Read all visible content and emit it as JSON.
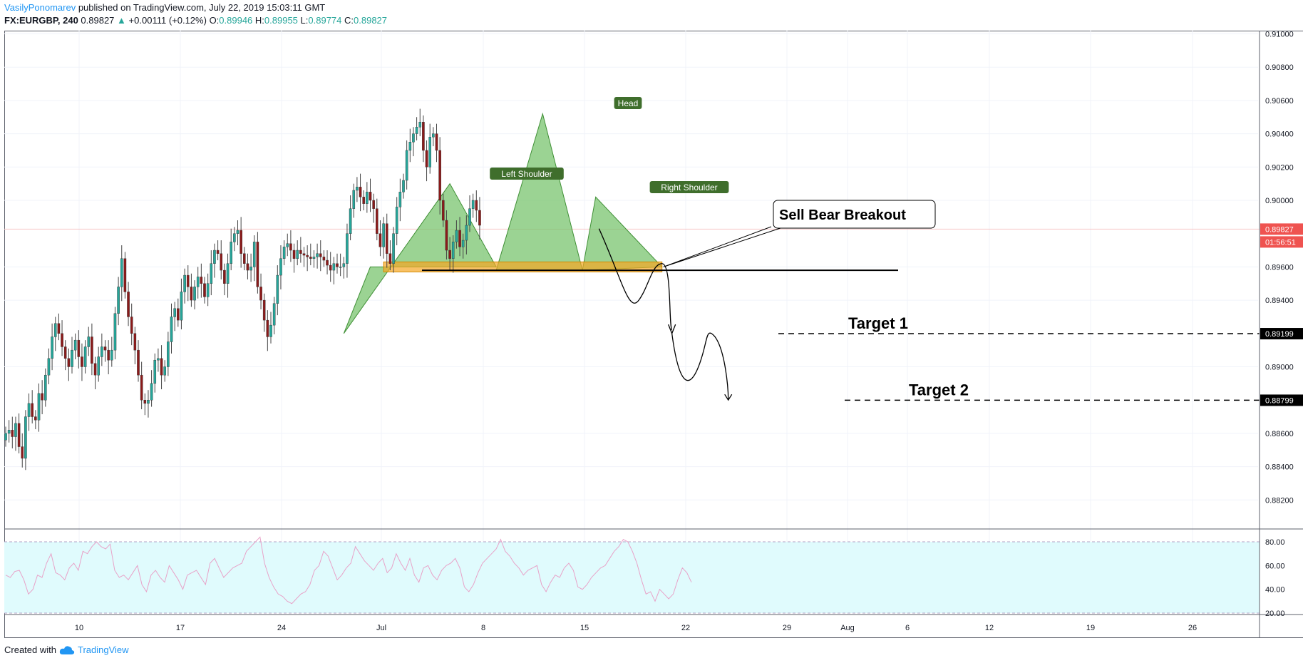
{
  "header": {
    "author": "VasilyPonomarev",
    "published_text": "published on TradingView.com, July 22, 2019 15:03:11 GMT",
    "symbol": "FX:EURGBP, 240",
    "last": "0.89827",
    "change_arrow": "▲",
    "change": "+0.00111 (+0.12%)",
    "o_label": "O:",
    "o_value": "0.89946",
    "h_label": "H:",
    "h_value": "0.89955",
    "l_label": "L:",
    "l_value": "0.89774",
    "c_label": "C:",
    "c_value": "0.89827"
  },
  "footer": {
    "created_with": "Created with",
    "brand": "TradingView",
    "brand_icon": "tradingview-cloud-icon"
  },
  "colors": {
    "bull": "#26a69a",
    "bear": "#8b1a1a",
    "pattern_fill": "#7ac46f",
    "zone": "#f5a623",
    "rsi_band": "#e0fbfd",
    "rsi_line": "#e8a2c8",
    "price_tag": "#ef5350",
    "label_bg": "#3f6e2c"
  },
  "chart_data": [
    {
      "type": "candlestick",
      "title": "",
      "ylim": [
        0.88,
        0.91
      ],
      "y_ticks": [
        "0.91000",
        "0.90800",
        "0.90600",
        "0.90400",
        "0.90200",
        "0.90000",
        "0.89600",
        "0.89400",
        "0.89000",
        "0.88600",
        "0.88400",
        "0.88200"
      ],
      "x_ticks": [
        "10",
        "17",
        "24",
        "Jul",
        "8",
        "15",
        "22",
        "29",
        "Aug",
        "6",
        "12",
        "19",
        "26"
      ],
      "price_tags": [
        {
          "label": "0.89827",
          "value": 0.89827,
          "kind": "last"
        },
        {
          "label": "01:56:51",
          "kind": "countdown"
        },
        {
          "label": "0.89199",
          "value": 0.89199,
          "kind": "target"
        },
        {
          "label": "0.88799",
          "value": 0.88799,
          "kind": "target"
        }
      ],
      "series": [
        {
          "values": [
            0.886,
            0.8862,
            0.8858,
            0.8866,
            0.8852,
            0.8845,
            0.887,
            0.8878,
            0.887,
            0.8868,
            0.8884,
            0.888,
            0.8895,
            0.8905,
            0.8918,
            0.8926,
            0.892,
            0.8912,
            0.8905,
            0.89,
            0.891,
            0.8916,
            0.8906,
            0.89,
            0.8912,
            0.8918,
            0.8902,
            0.8895,
            0.8906,
            0.8912,
            0.891,
            0.8904,
            0.891,
            0.8932,
            0.8948,
            0.8965,
            0.8945,
            0.893,
            0.892,
            0.891,
            0.8895,
            0.888,
            0.8878,
            0.888,
            0.889,
            0.8904,
            0.8905,
            0.8895,
            0.89,
            0.8915,
            0.893,
            0.8935,
            0.8928,
            0.8945,
            0.8955,
            0.8948,
            0.894,
            0.8948,
            0.8954,
            0.895,
            0.8942,
            0.895,
            0.8962,
            0.897,
            0.8968,
            0.8958,
            0.895,
            0.8962,
            0.8975,
            0.898,
            0.8982,
            0.8968,
            0.8962,
            0.8958,
            0.896,
            0.8975,
            0.8948,
            0.894,
            0.8928,
            0.8918,
            0.8925,
            0.8938,
            0.8955,
            0.8965,
            0.8972,
            0.8974,
            0.897,
            0.8965,
            0.897,
            0.8968,
            0.8967,
            0.8966,
            0.8965,
            0.8966,
            0.8968,
            0.8966,
            0.8964,
            0.8961,
            0.8958,
            0.8962,
            0.896,
            0.896,
            0.8962,
            0.898,
            0.8995,
            0.9006,
            0.9008,
            0.9002,
            0.8998,
            0.9005,
            0.9,
            0.8995,
            0.898,
            0.8972,
            0.8986,
            0.8968,
            0.8962,
            0.898,
            0.8996,
            0.9005,
            0.9012,
            0.903,
            0.9035,
            0.904,
            0.9044,
            0.9047,
            0.903,
            0.902,
            0.9038,
            0.904,
            0.903,
            0.9,
            0.8988,
            0.897,
            0.8965,
            0.8975,
            0.8982,
            0.8972,
            0.8976,
            0.8985,
            0.8995,
            0.9,
            0.8994,
            0.8985
          ]
        }
      ],
      "annotations": [
        {
          "text": "Head",
          "kind": "label"
        },
        {
          "text": "Left Shoulder",
          "kind": "label"
        },
        {
          "text": "Right Shoulder",
          "kind": "label"
        },
        {
          "text": "Sell Bear Breakout",
          "kind": "callout"
        },
        {
          "text": "Target 1",
          "kind": "target",
          "value": 0.89199
        },
        {
          "text": "Target 2",
          "kind": "target",
          "value": 0.88799
        },
        {
          "kind": "neckline",
          "value": 0.8958
        }
      ]
    },
    {
      "type": "line",
      "title": "",
      "ylim": [
        18,
        86
      ],
      "y_ticks": [
        "80.00",
        "60.00",
        "40.00",
        "20.00"
      ],
      "bands": [
        20,
        80
      ],
      "series": [
        {
          "values": [
            52,
            50,
            55,
            56,
            48,
            36,
            40,
            52,
            50,
            62,
            70,
            54,
            52,
            48,
            58,
            62,
            56,
            72,
            70,
            76,
            80,
            76,
            74,
            78,
            56,
            50,
            52,
            48,
            54,
            60,
            44,
            38,
            52,
            56,
            50,
            46,
            60,
            54,
            48,
            40,
            52,
            54,
            56,
            50,
            44,
            62,
            66,
            58,
            50,
            54,
            58,
            60,
            62,
            72,
            76,
            80,
            84,
            62,
            50,
            42,
            36,
            34,
            30,
            28,
            32,
            36,
            38,
            44,
            56,
            60,
            72,
            68,
            58,
            48,
            52,
            58,
            62,
            76,
            70,
            64,
            60,
            56,
            62,
            66,
            54,
            58,
            70,
            62,
            56,
            66,
            52,
            46,
            58,
            60,
            52,
            48,
            56,
            60,
            62,
            66,
            58,
            42,
            38,
            44,
            54,
            62,
            66,
            70,
            74,
            82,
            72,
            68,
            62,
            58,
            52,
            56,
            58,
            60,
            44,
            38,
            46,
            52,
            50,
            58,
            62,
            56,
            42,
            40,
            44,
            50,
            54,
            58,
            60,
            66,
            72,
            76,
            82,
            80,
            72,
            62,
            48,
            36,
            38,
            30,
            40,
            36,
            32,
            36,
            48,
            58,
            54,
            46
          ]
        }
      ]
    }
  ]
}
